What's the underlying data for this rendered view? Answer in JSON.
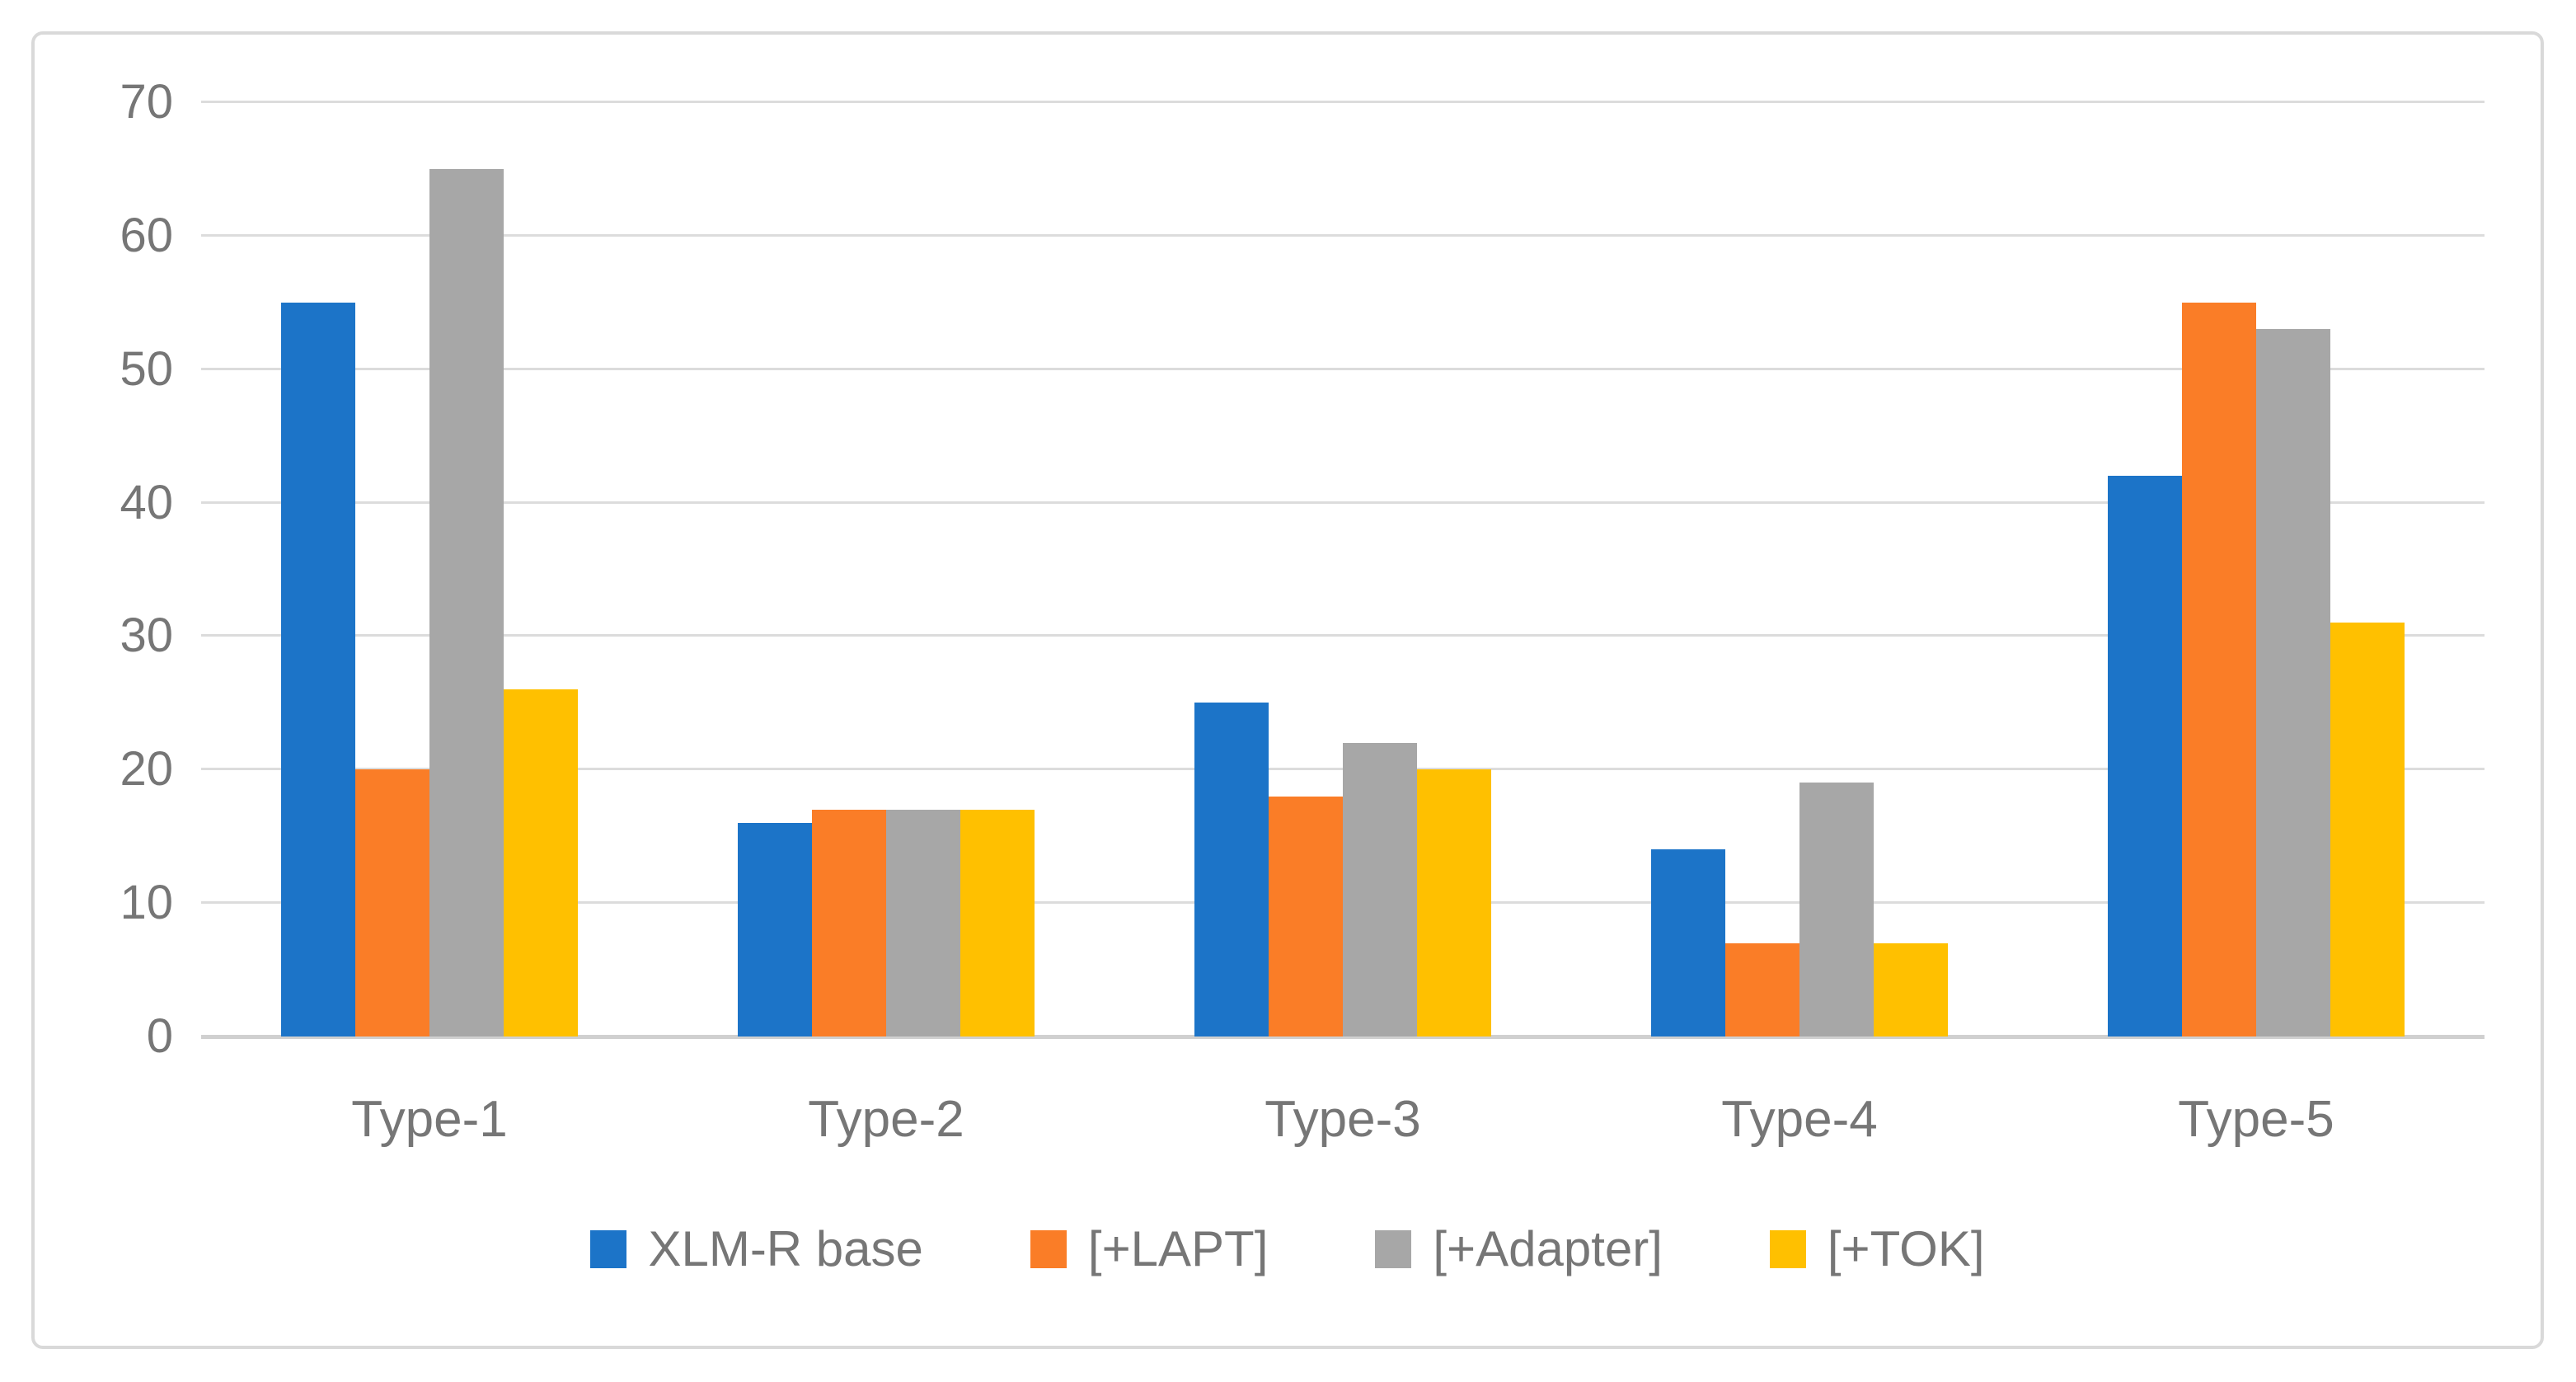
{
  "figure": {
    "background": "#FFFFFF",
    "frame_border_color": "#D9D9D9"
  },
  "chart_data": {
    "type": "bar",
    "title": "",
    "xlabel": "",
    "ylabel": "",
    "categories": [
      "Type-1",
      "Type-2",
      "Type-3",
      "Type-4",
      "Type-5"
    ],
    "series": [
      {
        "name": "XLM-R base",
        "color": "#1C74C8",
        "values": [
          55,
          16,
          25,
          14,
          42
        ]
      },
      {
        "name": "[+LAPT]",
        "color": "#FA7D27",
        "values": [
          20,
          17,
          18,
          7,
          55
        ]
      },
      {
        "name": "[+Adapter]",
        "color": "#A7A7A7",
        "values": [
          65,
          17,
          22,
          19,
          53
        ]
      },
      {
        "name": "[+TOK]",
        "color": "#FFC000",
        "values": [
          26,
          17,
          20,
          7,
          31
        ]
      }
    ],
    "ylim": [
      0,
      70
    ],
    "yticks": [
      0,
      10,
      20,
      30,
      40,
      50,
      60,
      70
    ],
    "grid": true,
    "gridline_color": "#DCDCDC",
    "axis_line_color": "#D0D0D0",
    "label_color": "#767676",
    "legend_position": "bottom"
  }
}
